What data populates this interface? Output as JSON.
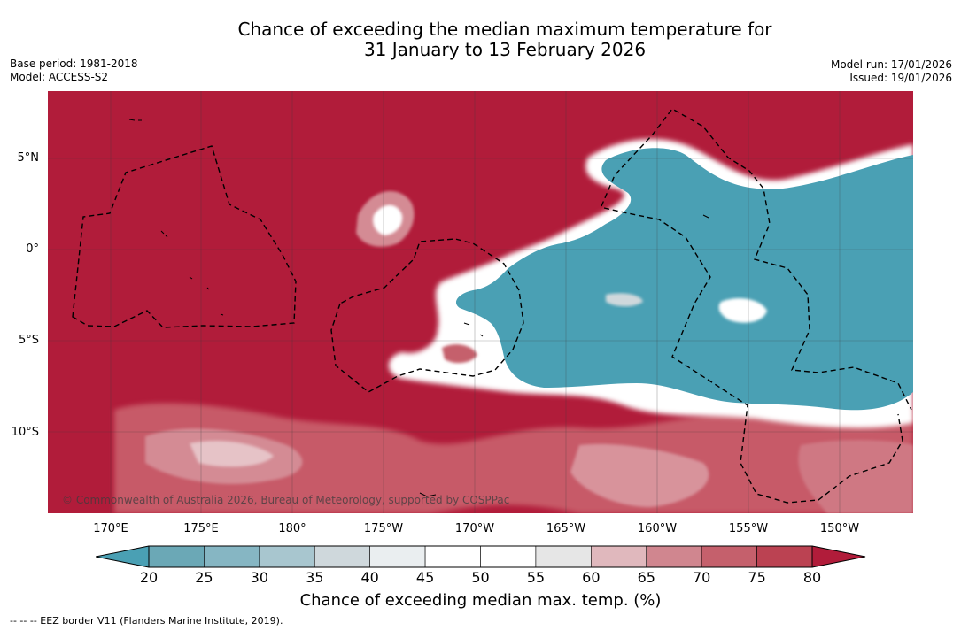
{
  "title": {
    "line1": "Chance of exceeding the median maximum temperature for",
    "line2": "31 January to 13 February 2026"
  },
  "meta": {
    "base_period": "Base period: 1981-2018",
    "model": "Model: ACCESS-S2",
    "model_run": "Model run: 17/01/2026",
    "issued": "Issued: 19/01/2026"
  },
  "map": {
    "latitude_labels": [
      "5°N",
      "0°",
      "5°S",
      "10°S"
    ],
    "longitude_labels": [
      "170°E",
      "175°E",
      "180°",
      "175°W",
      "170°W",
      "165°W",
      "160°W",
      "155°W",
      "150°W"
    ],
    "copyright": "© Commonwealth of Australia 2026, Bureau of Meteorology, supported by COSPPac"
  },
  "colorbar": {
    "ticks": [
      "20",
      "25",
      "30",
      "35",
      "40",
      "45",
      "50",
      "55",
      "60",
      "65",
      "70",
      "75",
      "80"
    ],
    "colors": [
      "#6ba8b6",
      "#86b6c3",
      "#a8c6cf",
      "#cfd8dc",
      "#eaeef0",
      "#ffffff",
      "#ffffff",
      "#e6e6e6",
      "#e0b8bd",
      "#d0868f",
      "#c5606c",
      "#bb4252"
    ],
    "low_extend_color": "#4aa0b4",
    "high_extend_color": "#b11c3a",
    "label": "Chance of exceeding median max. temp. (%)"
  },
  "footnote": "-- -- -- EEZ border V11 (Flanders Marine Institute, 2019).",
  "colors": {
    "high": "#b11c3a",
    "low": "#4aa0b4"
  }
}
